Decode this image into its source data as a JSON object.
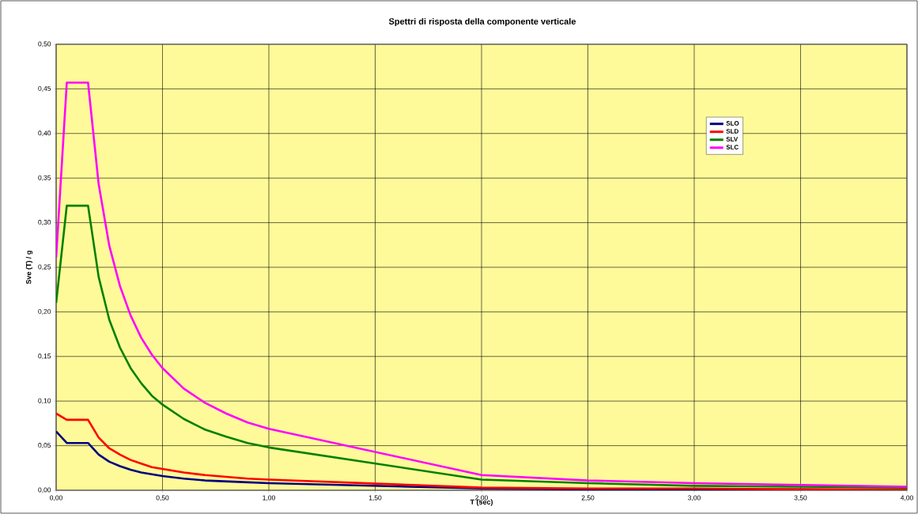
{
  "chart_data": {
    "type": "line",
    "title": "Spettri di risposta della componente verticale",
    "xlabel": "T (sec)",
    "ylabel": "Sve (T) / g",
    "x": [
      0,
      0.05,
      0.15,
      0.2,
      0.25,
      0.3,
      0.35,
      0.4,
      0.45,
      0.5,
      0.6,
      0.7,
      0.8,
      0.9,
      1.0,
      2.0,
      2.5,
      3.0,
      3.5,
      4.0
    ],
    "series": [
      {
        "name": "SLO",
        "color": "#000080",
        "values": [
          0.066,
          0.053,
          0.053,
          0.04,
          0.032,
          0.027,
          0.023,
          0.02,
          0.018,
          0.016,
          0.013,
          0.011,
          0.01,
          0.009,
          0.008,
          0.002,
          0.001,
          0.001,
          0.001,
          0.0
        ]
      },
      {
        "name": "SLD",
        "color": "#ff0000",
        "values": [
          0.086,
          0.079,
          0.079,
          0.059,
          0.047,
          0.04,
          0.034,
          0.03,
          0.026,
          0.024,
          0.02,
          0.017,
          0.015,
          0.013,
          0.012,
          0.003,
          0.002,
          0.002,
          0.001,
          0.001
        ]
      },
      {
        "name": "SLV",
        "color": "#008000",
        "values": [
          0.21,
          0.319,
          0.319,
          0.239,
          0.191,
          0.16,
          0.137,
          0.12,
          0.106,
          0.096,
          0.08,
          0.068,
          0.06,
          0.053,
          0.048,
          0.012,
          0.008,
          0.005,
          0.004,
          0.003
        ]
      },
      {
        "name": "SLC",
        "color": "#ff00ff",
        "values": [
          0.261,
          0.457,
          0.457,
          0.343,
          0.274,
          0.229,
          0.196,
          0.171,
          0.152,
          0.137,
          0.114,
          0.098,
          0.086,
          0.076,
          0.069,
          0.017,
          0.011,
          0.008,
          0.006,
          0.004
        ]
      }
    ],
    "xlim": [
      0,
      4
    ],
    "ylim": [
      0,
      0.5
    ],
    "xticks": [
      {
        "value": 0,
        "label": "0,00"
      },
      {
        "value": 0.5,
        "label": "0,50"
      },
      {
        "value": 1,
        "label": "1,00"
      },
      {
        "value": 1.5,
        "label": "1,50"
      },
      {
        "value": 2,
        "label": "2,00"
      },
      {
        "value": 2.5,
        "label": "2,50"
      },
      {
        "value": 3,
        "label": "3,00"
      },
      {
        "value": 3.5,
        "label": "3,50"
      },
      {
        "value": 4,
        "label": "4,00"
      }
    ],
    "yticks": [
      {
        "value": 0,
        "label": "0,00"
      },
      {
        "value": 0.05,
        "label": "0,05"
      },
      {
        "value": 0.1,
        "label": "0,10"
      },
      {
        "value": 0.15,
        "label": "0,15"
      },
      {
        "value": 0.2,
        "label": "0,20"
      },
      {
        "value": 0.25,
        "label": "0,25"
      },
      {
        "value": 0.3,
        "label": "0,30"
      },
      {
        "value": 0.35,
        "label": "0,35"
      },
      {
        "value": 0.4,
        "label": "0,40"
      },
      {
        "value": 0.45,
        "label": "0,45"
      },
      {
        "value": 0.5,
        "label": "0,50"
      }
    ],
    "grid": true,
    "legend": "top right",
    "marker": "none",
    "line_style": "solid"
  }
}
